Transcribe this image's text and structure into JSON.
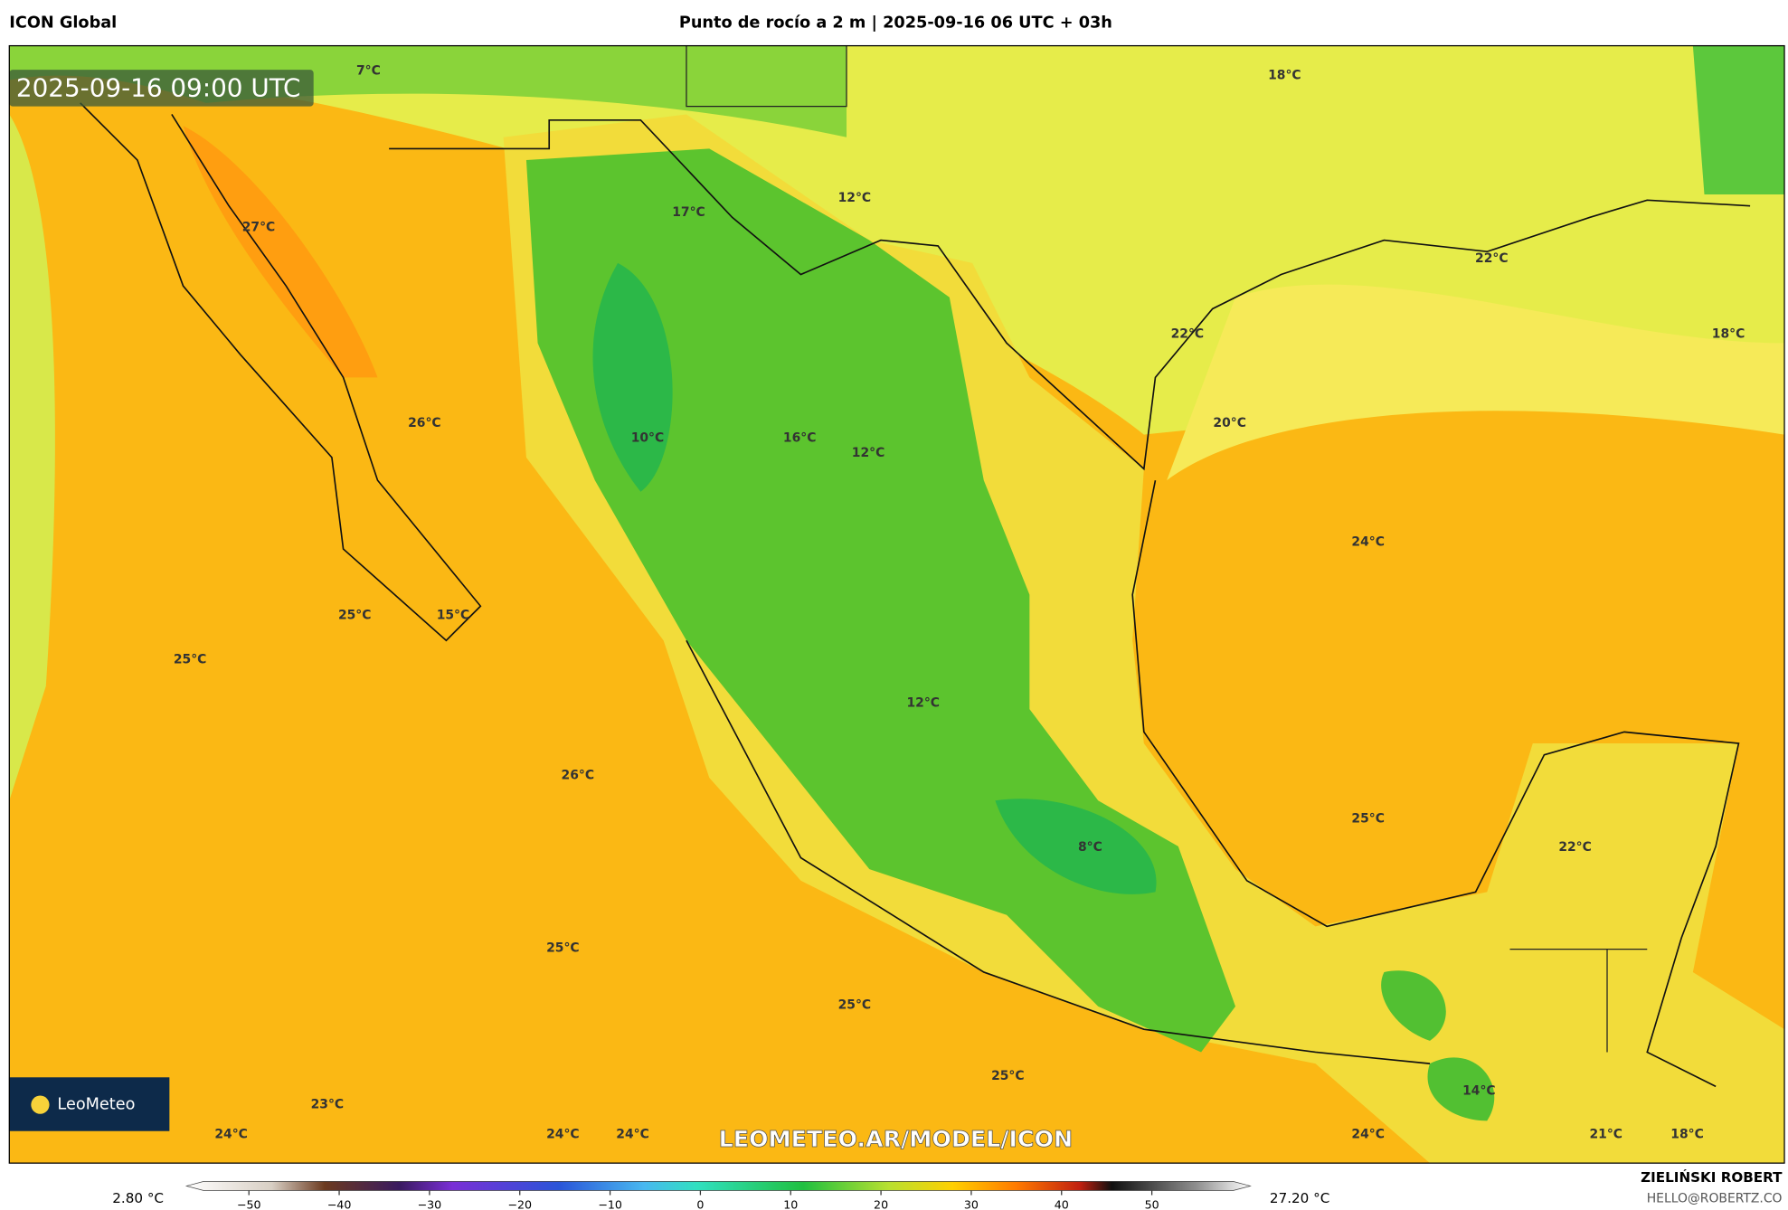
{
  "header": {
    "source": "ICON Global",
    "title": "Punto de rocío a 2 m | 2025-09-16 06 UTC + 03h"
  },
  "map": {
    "timestamp": "2025-09-16 09:00 UTC",
    "logo": "LeoMeteo",
    "watermark": "LEOMETEO.AR/MODEL/ICON",
    "labels": [
      "7°C",
      "18°C",
      "27°C",
      "17°C",
      "12°C",
      "22°C",
      "18°C",
      "22°C",
      "26°C",
      "10°C",
      "16°C",
      "12°C",
      "20°C",
      "24°C",
      "25°C",
      "15°C",
      "25°C",
      "12°C",
      "26°C",
      "25°C",
      "22°C",
      "8°C",
      "25°C",
      "25°C",
      "25°C",
      "14°C",
      "23°C",
      "24°C",
      "24°C",
      "24°C",
      "24°C",
      "21°C",
      "18°C"
    ]
  },
  "colorbar": {
    "min_label": "2.80 °C",
    "max_label": "27.20 °C",
    "lim": [
      -55,
      59
    ],
    "ticks": [
      {
        "value": -50,
        "label": "−50"
      },
      {
        "value": -40,
        "label": "−40"
      },
      {
        "value": -30,
        "label": "−30"
      },
      {
        "value": -20,
        "label": "−20"
      },
      {
        "value": -10,
        "label": "−10"
      },
      0,
      10,
      20,
      30,
      40,
      50
    ]
  },
  "footer": {
    "author": "ZIELIŃSKI ROBERT",
    "email": "HELLO@ROBERTZ.CO"
  }
}
